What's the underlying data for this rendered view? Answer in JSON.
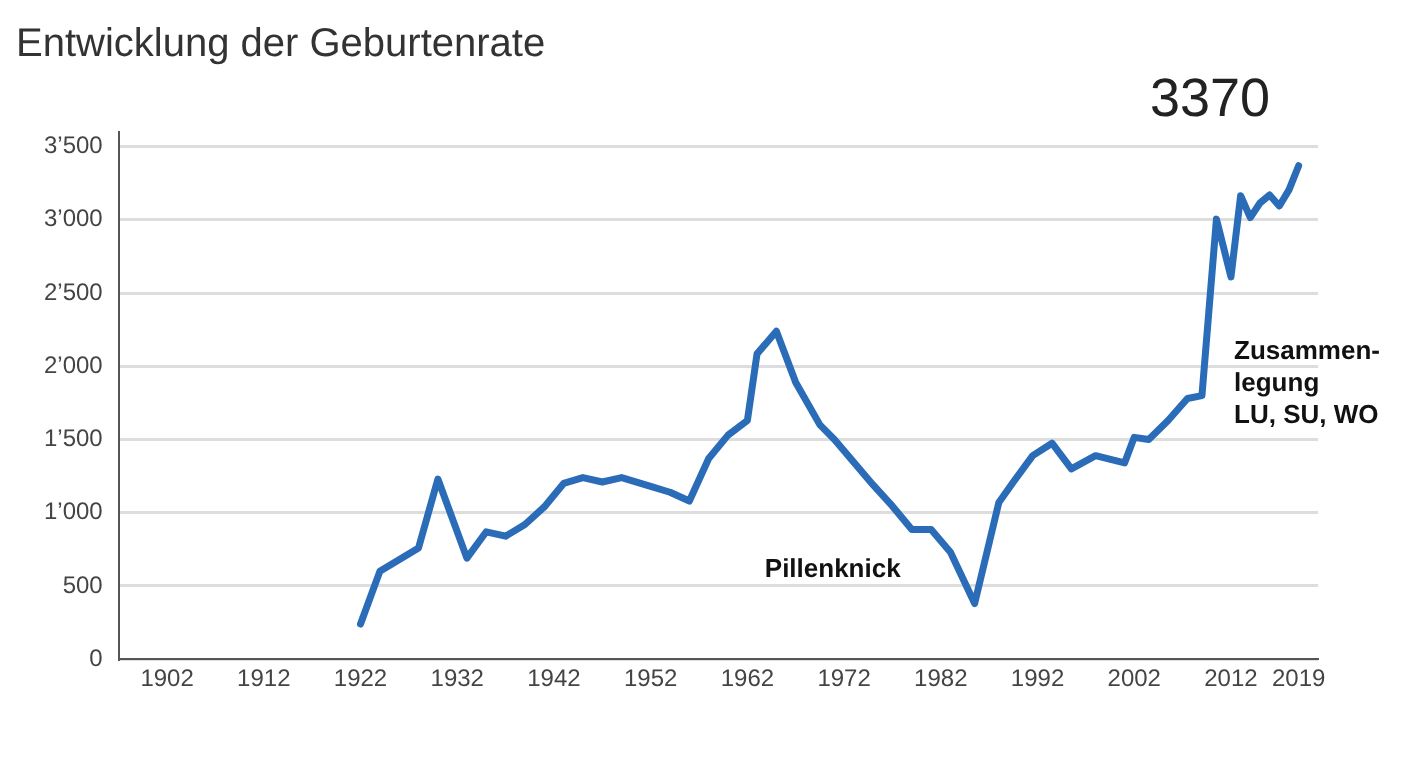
{
  "chart_data": {
    "type": "line",
    "title": "Entwicklung der Geburtenrate",
    "x": [
      1922,
      1924,
      1928,
      1930,
      1933,
      1935,
      1937,
      1939,
      1941,
      1943,
      1945,
      1947,
      1949,
      1952,
      1954,
      1956,
      1958,
      1960,
      1962,
      1963,
      1965,
      1967,
      1969.5,
      1971,
      1975,
      1977,
      1979,
      1981,
      1983,
      1985.5,
      1988,
      1989.5,
      1991.5,
      1993.5,
      1995.5,
      1998,
      2001,
      2002,
      2003.5,
      2005.5,
      2007.5,
      2009,
      2010.5,
      2012,
      2013,
      2014,
      2015,
      2016,
      2017,
      2018,
      2019
    ],
    "series": [
      {
        "color": "#2b6cb8",
        "values": [
          240,
          600,
          760,
          1230,
          690,
          870,
          840,
          920,
          1040,
          1200,
          1240,
          1210,
          1240,
          1180,
          1140,
          1080,
          1370,
          1530,
          1630,
          2085,
          2240,
          1890,
          1600,
          1500,
          1190,
          1045,
          885,
          885,
          730,
          380,
          1070,
          1210,
          1390,
          1475,
          1300,
          1390,
          1340,
          1515,
          1500,
          1630,
          1780,
          1800,
          3005,
          2610,
          3165,
          3015,
          3115,
          3170,
          3095,
          3205,
          3370
        ]
      }
    ],
    "xlim": [
      1897,
      2021
    ],
    "xticks": [
      1902,
      1912,
      1922,
      1932,
      1942,
      1952,
      1962,
      1972,
      1982,
      1992,
      2002,
      2012,
      2019
    ],
    "ylim": [
      0,
      3600
    ],
    "yticks": [
      0,
      500,
      {
        "value": 1000,
        "label": "1’000"
      },
      {
        "value": 1500,
        "label": "1’500"
      },
      {
        "value": 2000,
        "label": "2’000"
      },
      {
        "value": 2500,
        "label": "2’500"
      },
      {
        "value": 3000,
        "label": "3’000"
      },
      {
        "value": 3500,
        "label": "3’500"
      }
    ],
    "grid": "y",
    "legend": false,
    "marker": "none",
    "line_style": "solid",
    "annotations": [
      "3370",
      "Pillenknick",
      "Zusammen-\nlegung\nLU, SU, WO"
    ]
  }
}
